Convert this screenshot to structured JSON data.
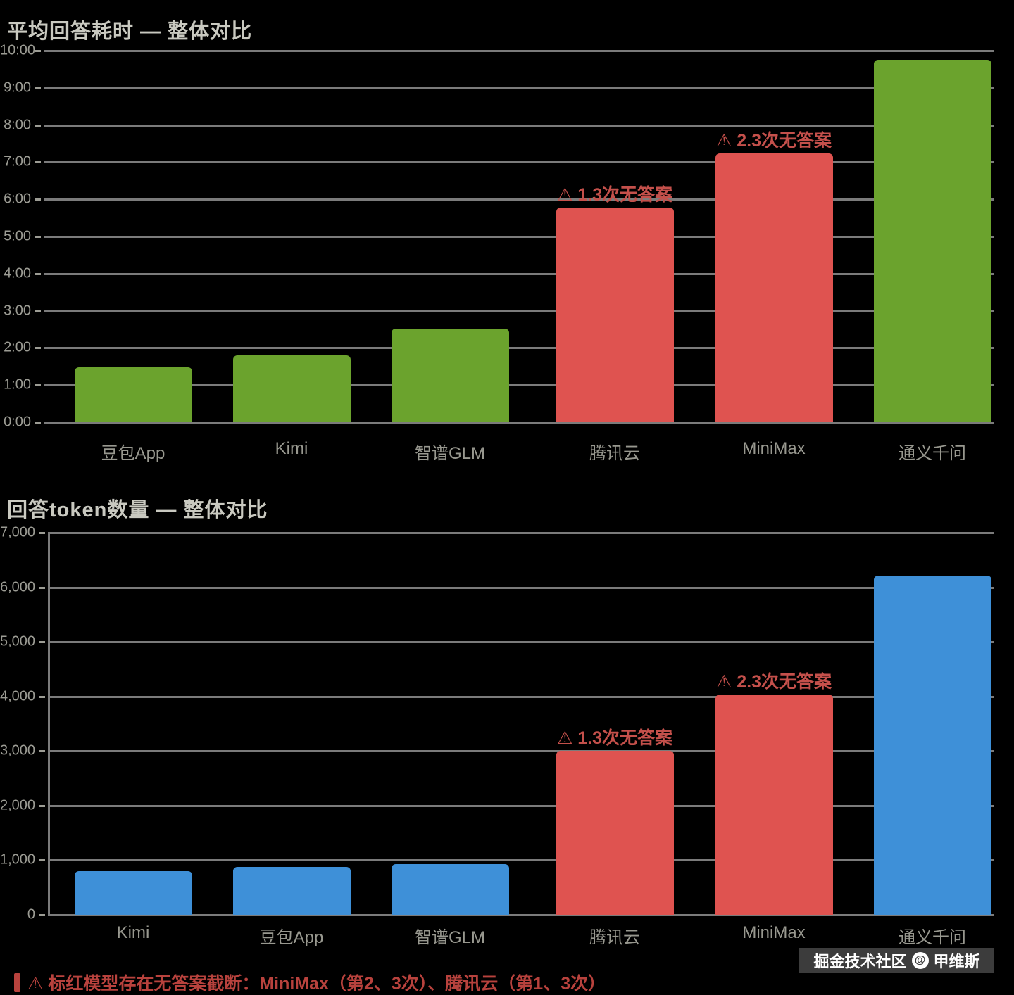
{
  "colors": {
    "background": "#000000",
    "green": "#6BA32D",
    "red": "#DF5350",
    "blue": "#3E90D8",
    "annotation_text": "#C4504B",
    "footnote_text": "#B8423D",
    "gridline": "#7B7B7B",
    "tick_text": "#9C9C94",
    "title_text": "#C9C9C0",
    "x_label_text": "#98988F",
    "watermark_bg": "#3C3C3C",
    "watermark_text": "#FFFFFF"
  },
  "chart_data": [
    {
      "type": "bar",
      "title": "平均回答耗时 — 整体对比",
      "categories": [
        "豆包App",
        "Kimi",
        "智谱GLM",
        "腾讯云",
        "MiniMax",
        "通义千问"
      ],
      "values": [
        89,
        108,
        151,
        347,
        434,
        585
      ],
      "value_unit": "seconds",
      "bar_colors": [
        "green",
        "green",
        "green",
        "red",
        "red",
        "green"
      ],
      "annotations": [
        null,
        null,
        null,
        "⚠ 1.3次无答案",
        "⚠ 2.3次无答案",
        null
      ],
      "ylim": [
        0,
        600
      ],
      "ytick_labels": [
        "10:00",
        "9:00",
        "8:00",
        "7:00",
        "6:00",
        "5:00",
        "4:00",
        "3:00",
        "2:00",
        "1:00",
        "0:00"
      ],
      "grid": true,
      "legend": "none"
    },
    {
      "type": "bar",
      "title": "回答token数量 — 整体对比",
      "categories": [
        "Kimi",
        "豆包App",
        "智谱GLM",
        "腾讯云",
        "MiniMax",
        "通义千问"
      ],
      "values": [
        800,
        880,
        930,
        3000,
        4030,
        6210
      ],
      "value_unit": "tokens",
      "bar_colors": [
        "blue",
        "blue",
        "blue",
        "red",
        "red",
        "blue"
      ],
      "annotations": [
        null,
        null,
        null,
        "⚠ 1.3次无答案",
        "⚠ 2.3次无答案",
        null
      ],
      "ylim": [
        0,
        7000
      ],
      "ytick_labels": [
        "7,000",
        "6,000",
        "5,000",
        "4,000",
        "3,000",
        "2,000",
        "1,000",
        "0"
      ],
      "grid": true,
      "legend": "none"
    }
  ],
  "footnote": {
    "text": "⚠ 标红模型存在无答案截断：MiniMax（第2、3次）、腾讯云（第1、3次）"
  },
  "watermark": {
    "site": "掘金技术社区",
    "at": "@",
    "author": "甲维斯"
  }
}
